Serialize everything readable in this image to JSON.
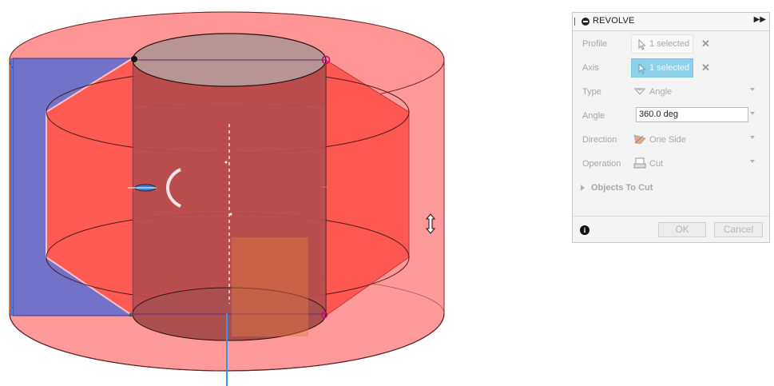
{
  "panel": {
    "title": "REVOLVE",
    "rows": {
      "profile": {
        "label": "Profile",
        "value": "1 selected"
      },
      "axis": {
        "label": "Axis",
        "value": "1 selected"
      },
      "type": {
        "label": "Type",
        "value": "Angle"
      },
      "angle": {
        "label": "Angle",
        "value": "360.0 deg"
      },
      "direction": {
        "label": "Direction",
        "value": "One Side"
      },
      "operation": {
        "label": "Operation",
        "value": "Cut"
      }
    },
    "section": {
      "label": "Objects To Cut"
    },
    "buttons": {
      "ok": "OK",
      "cancel": "Cancel"
    }
  },
  "colors": {
    "body_fill": "#ff8f8f",
    "profile_fill": "#ff4d4d",
    "inner_cylinder": "#b24a4a",
    "blue_face": "#6f6fc6",
    "axis_line": "#3b94e6",
    "selection_highlight": "#8fd0ea",
    "panel_bg": "#f4f4f4"
  },
  "icons": [
    "grip-icon",
    "minus-circle-icon",
    "expand-icon",
    "cursor-icon",
    "clear-icon",
    "angle-icon",
    "direction-icon",
    "cut-icon",
    "caret-right-icon",
    "info-icon",
    "rotate-arrow-icon",
    "resize-vertical-cursor-icon"
  ]
}
